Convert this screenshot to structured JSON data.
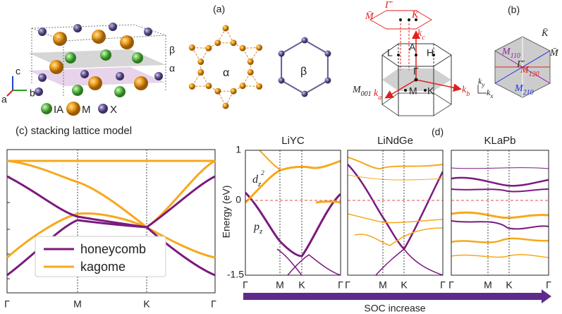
{
  "panel_a": {
    "label": "(a)",
    "axes": {
      "c": "c",
      "b": "b",
      "a": "a"
    },
    "layers": [
      "β",
      "α"
    ],
    "legend": [
      "IA",
      "M",
      "X"
    ],
    "lattices": [
      "α",
      "β"
    ]
  },
  "panel_b": {
    "label": "(b)",
    "surface": {
      "M": "M̄",
      "G": "Γ̄",
      "K": "K̄"
    },
    "kc": {
      "text": "k",
      "sub": "c"
    },
    "points": [
      "L",
      "A",
      "H",
      "Γ",
      "M",
      "K"
    ],
    "m001": {
      "text": "M",
      "sub": "001"
    },
    "ka": {
      "text": "k",
      "sub": "a"
    },
    "kb": {
      "text": "k",
      "sub": "b"
    },
    "ky": {
      "text": "k",
      "sub": "y"
    },
    "kx": {
      "text": "k",
      "sub": "x"
    },
    "surface_bz": {
      "K": "K̄",
      "M": "M̄",
      "G": "Γ̄",
      "m110": {
        "text": "M",
        "sub": "110"
      },
      "m120": {
        "text": "M",
        "sub": "120"
      },
      "m210": {
        "text": "M",
        "sub": "210"
      }
    }
  },
  "panel_c": {
    "label": "(c) stacking lattice model",
    "xticks": [
      "Γ",
      "M",
      "K",
      "Γ"
    ],
    "legend": [
      "honeycomb",
      "kagome"
    ]
  },
  "panel_d": {
    "label": "(d)",
    "ylabel": "Energy (eV)",
    "yticks": [
      "1",
      "0",
      "-1.5"
    ],
    "dz2": {
      "text": "d",
      "sub": "z",
      "sup": "2"
    },
    "pz": {
      "text": "p",
      "sub": "z"
    },
    "panels": [
      {
        "title": "LiYC",
        "xticks": [
          "Γ",
          "M",
          "K",
          "Γ"
        ]
      },
      {
        "title": "LiNdGe",
        "xticks": [
          "Γ",
          "M",
          "K",
          "Γ"
        ]
      },
      {
        "title": "KLaPb",
        "xticks": [
          "Γ",
          "M",
          "K",
          "Γ"
        ]
      }
    ],
    "arrow": "SOC increase"
  }
}
